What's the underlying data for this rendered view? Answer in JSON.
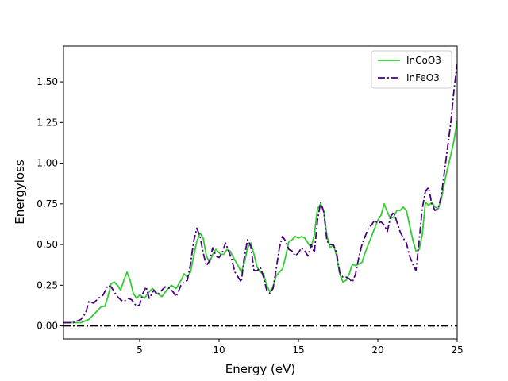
{
  "chart_data": {
    "type": "line",
    "title": "",
    "xlabel": "Energy (eV)",
    "ylabel": "Energyloss",
    "xlim": [
      0.2,
      25
    ],
    "ylim": [
      -0.08,
      1.72
    ],
    "x_ticks": [
      5,
      10,
      15,
      20,
      25
    ],
    "x_tick_labels": [
      "5",
      "10",
      "15",
      "20",
      "25"
    ],
    "y_ticks": [
      0.0,
      0.25,
      0.5,
      0.75,
      1.0,
      1.25,
      1.5
    ],
    "y_tick_labels": [
      "0.00",
      "0.25",
      "0.50",
      "0.75",
      "1.00",
      "1.25",
      "1.50"
    ],
    "grid": false,
    "legend_position": "top-right",
    "reference_line": {
      "y": 0.0,
      "color": "#000000",
      "style": "dash-dot"
    },
    "series": [
      {
        "name": "InCoO3",
        "color": "#32cd32",
        "style": "solid",
        "points": [
          [
            0.2,
            0.02
          ],
          [
            0.8,
            0.02
          ],
          [
            1.3,
            0.02
          ],
          [
            1.8,
            0.04
          ],
          [
            2.3,
            0.09
          ],
          [
            2.6,
            0.12
          ],
          [
            2.8,
            0.12
          ],
          [
            3.0,
            0.18
          ],
          [
            3.2,
            0.26
          ],
          [
            3.4,
            0.27
          ],
          [
            3.6,
            0.25
          ],
          [
            3.8,
            0.22
          ],
          [
            4.0,
            0.28
          ],
          [
            4.2,
            0.33
          ],
          [
            4.4,
            0.28
          ],
          [
            4.6,
            0.2
          ],
          [
            4.8,
            0.17
          ],
          [
            5.0,
            0.19
          ],
          [
            5.3,
            0.17
          ],
          [
            5.6,
            0.21
          ],
          [
            5.8,
            0.23
          ],
          [
            6.1,
            0.2
          ],
          [
            6.4,
            0.18
          ],
          [
            6.7,
            0.22
          ],
          [
            7.0,
            0.25
          ],
          [
            7.3,
            0.23
          ],
          [
            7.6,
            0.28
          ],
          [
            7.8,
            0.32
          ],
          [
            8.0,
            0.3
          ],
          [
            8.2,
            0.33
          ],
          [
            8.4,
            0.43
          ],
          [
            8.6,
            0.52
          ],
          [
            8.8,
            0.57
          ],
          [
            9.0,
            0.54
          ],
          [
            9.2,
            0.43
          ],
          [
            9.4,
            0.39
          ],
          [
            9.6,
            0.44
          ],
          [
            9.8,
            0.47
          ],
          [
            10.1,
            0.44
          ],
          [
            10.3,
            0.44
          ],
          [
            10.5,
            0.47
          ],
          [
            10.7,
            0.46
          ],
          [
            10.9,
            0.42
          ],
          [
            11.2,
            0.37
          ],
          [
            11.4,
            0.33
          ],
          [
            11.6,
            0.39
          ],
          [
            11.8,
            0.48
          ],
          [
            12.0,
            0.51
          ],
          [
            12.2,
            0.44
          ],
          [
            12.4,
            0.36
          ],
          [
            12.6,
            0.33
          ],
          [
            12.8,
            0.32
          ],
          [
            13.0,
            0.25
          ],
          [
            13.2,
            0.21
          ],
          [
            13.4,
            0.24
          ],
          [
            13.6,
            0.31
          ],
          [
            13.8,
            0.33
          ],
          [
            14.0,
            0.35
          ],
          [
            14.2,
            0.43
          ],
          [
            14.4,
            0.52
          ],
          [
            14.6,
            0.53
          ],
          [
            14.8,
            0.55
          ],
          [
            15.0,
            0.54
          ],
          [
            15.2,
            0.55
          ],
          [
            15.4,
            0.54
          ],
          [
            15.6,
            0.51
          ],
          [
            15.8,
            0.48
          ],
          [
            16.0,
            0.56
          ],
          [
            16.2,
            0.72
          ],
          [
            16.4,
            0.75
          ],
          [
            16.6,
            0.7
          ],
          [
            16.8,
            0.55
          ],
          [
            17.0,
            0.48
          ],
          [
            17.2,
            0.5
          ],
          [
            17.4,
            0.43
          ],
          [
            17.6,
            0.32
          ],
          [
            17.8,
            0.27
          ],
          [
            18.0,
            0.28
          ],
          [
            18.2,
            0.32
          ],
          [
            18.4,
            0.38
          ],
          [
            18.6,
            0.37
          ],
          [
            18.8,
            0.38
          ],
          [
            19.0,
            0.39
          ],
          [
            19.2,
            0.45
          ],
          [
            19.4,
            0.5
          ],
          [
            19.6,
            0.55
          ],
          [
            19.8,
            0.6
          ],
          [
            20.0,
            0.65
          ],
          [
            20.2,
            0.68
          ],
          [
            20.4,
            0.75
          ],
          [
            20.6,
            0.7
          ],
          [
            20.8,
            0.66
          ],
          [
            21.0,
            0.67
          ],
          [
            21.2,
            0.71
          ],
          [
            21.4,
            0.71
          ],
          [
            21.6,
            0.73
          ],
          [
            21.8,
            0.71
          ],
          [
            22.0,
            0.62
          ],
          [
            22.2,
            0.53
          ],
          [
            22.4,
            0.46
          ],
          [
            22.6,
            0.47
          ],
          [
            22.8,
            0.56
          ],
          [
            23.0,
            0.76
          ],
          [
            23.2,
            0.74
          ],
          [
            23.4,
            0.76
          ],
          [
            23.6,
            0.73
          ],
          [
            23.8,
            0.72
          ],
          [
            24.0,
            0.78
          ],
          [
            24.2,
            0.88
          ],
          [
            24.4,
            0.97
          ],
          [
            24.6,
            1.05
          ],
          [
            24.8,
            1.14
          ],
          [
            25.0,
            1.26
          ]
        ]
      },
      {
        "name": "InFeO3",
        "color": "#4b0082",
        "style": "dash-dot",
        "points": [
          [
            0.2,
            0.02
          ],
          [
            0.8,
            0.02
          ],
          [
            1.3,
            0.04
          ],
          [
            1.6,
            0.08
          ],
          [
            1.8,
            0.15
          ],
          [
            2.1,
            0.14
          ],
          [
            2.4,
            0.17
          ],
          [
            2.7,
            0.19
          ],
          [
            3.0,
            0.25
          ],
          [
            3.2,
            0.24
          ],
          [
            3.4,
            0.21
          ],
          [
            3.6,
            0.18
          ],
          [
            3.8,
            0.16
          ],
          [
            4.0,
            0.15
          ],
          [
            4.3,
            0.17
          ],
          [
            4.5,
            0.16
          ],
          [
            4.8,
            0.12
          ],
          [
            5.0,
            0.13
          ],
          [
            5.2,
            0.2
          ],
          [
            5.4,
            0.24
          ],
          [
            5.6,
            0.17
          ],
          [
            5.9,
            0.22
          ],
          [
            6.1,
            0.19
          ],
          [
            6.4,
            0.22
          ],
          [
            6.6,
            0.24
          ],
          [
            6.9,
            0.23
          ],
          [
            7.1,
            0.21
          ],
          [
            7.3,
            0.18
          ],
          [
            7.6,
            0.25
          ],
          [
            7.8,
            0.27
          ],
          [
            8.0,
            0.28
          ],
          [
            8.2,
            0.38
          ],
          [
            8.4,
            0.52
          ],
          [
            8.6,
            0.6
          ],
          [
            8.8,
            0.55
          ],
          [
            9.0,
            0.45
          ],
          [
            9.2,
            0.37
          ],
          [
            9.4,
            0.4
          ],
          [
            9.6,
            0.48
          ],
          [
            9.8,
            0.43
          ],
          [
            10.0,
            0.42
          ],
          [
            10.2,
            0.45
          ],
          [
            10.4,
            0.51
          ],
          [
            10.6,
            0.46
          ],
          [
            10.8,
            0.41
          ],
          [
            11.0,
            0.33
          ],
          [
            11.2,
            0.3
          ],
          [
            11.4,
            0.27
          ],
          [
            11.6,
            0.43
          ],
          [
            11.8,
            0.53
          ],
          [
            12.0,
            0.49
          ],
          [
            12.2,
            0.34
          ],
          [
            12.4,
            0.34
          ],
          [
            12.6,
            0.36
          ],
          [
            12.8,
            0.3
          ],
          [
            13.0,
            0.22
          ],
          [
            13.2,
            0.2
          ],
          [
            13.4,
            0.23
          ],
          [
            13.6,
            0.35
          ],
          [
            13.8,
            0.48
          ],
          [
            14.0,
            0.55
          ],
          [
            14.2,
            0.52
          ],
          [
            14.4,
            0.47
          ],
          [
            14.6,
            0.46
          ],
          [
            14.8,
            0.43
          ],
          [
            15.0,
            0.45
          ],
          [
            15.2,
            0.48
          ],
          [
            15.4,
            0.46
          ],
          [
            15.6,
            0.43
          ],
          [
            15.8,
            0.5
          ],
          [
            16.0,
            0.45
          ],
          [
            16.2,
            0.65
          ],
          [
            16.4,
            0.76
          ],
          [
            16.6,
            0.7
          ],
          [
            16.8,
            0.52
          ],
          [
            17.0,
            0.5
          ],
          [
            17.2,
            0.5
          ],
          [
            17.4,
            0.45
          ],
          [
            17.6,
            0.33
          ],
          [
            17.8,
            0.3
          ],
          [
            18.0,
            0.3
          ],
          [
            18.2,
            0.29
          ],
          [
            18.4,
            0.27
          ],
          [
            18.6,
            0.32
          ],
          [
            18.8,
            0.42
          ],
          [
            19.0,
            0.5
          ],
          [
            19.2,
            0.55
          ],
          [
            19.4,
            0.6
          ],
          [
            19.6,
            0.62
          ],
          [
            19.8,
            0.65
          ],
          [
            20.0,
            0.63
          ],
          [
            20.2,
            0.64
          ],
          [
            20.4,
            0.62
          ],
          [
            20.6,
            0.58
          ],
          [
            20.8,
            0.67
          ],
          [
            21.0,
            0.7
          ],
          [
            21.2,
            0.64
          ],
          [
            21.4,
            0.58
          ],
          [
            21.6,
            0.54
          ],
          [
            21.8,
            0.51
          ],
          [
            22.0,
            0.43
          ],
          [
            22.2,
            0.38
          ],
          [
            22.4,
            0.34
          ],
          [
            22.6,
            0.52
          ],
          [
            22.8,
            0.72
          ],
          [
            23.0,
            0.83
          ],
          [
            23.2,
            0.85
          ],
          [
            23.4,
            0.75
          ],
          [
            23.6,
            0.71
          ],
          [
            23.8,
            0.72
          ],
          [
            24.0,
            0.8
          ],
          [
            24.2,
            0.95
          ],
          [
            24.4,
            1.1
          ],
          [
            24.6,
            1.25
          ],
          [
            24.8,
            1.45
          ],
          [
            25.0,
            1.61
          ]
        ]
      }
    ]
  }
}
